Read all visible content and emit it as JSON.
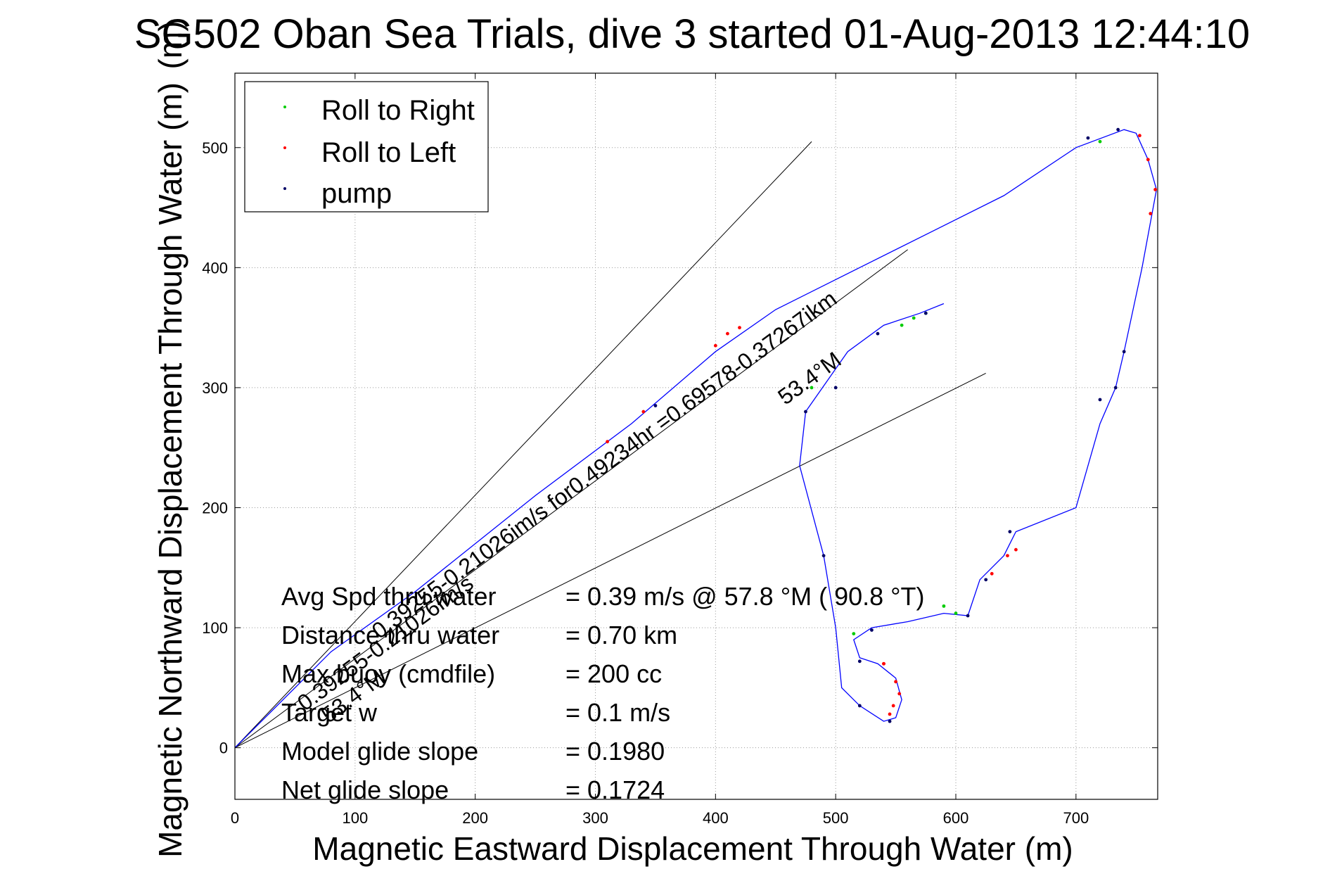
{
  "chart_data": {
    "type": "line",
    "title": "SG502 Oban Sea Trials, dive 3 started 01-Aug-2013 12:44:10",
    "title_overlap_glyph": "(m)",
    "xlabel": "Magnetic Eastward Displacement Through Water (m)",
    "ylabel": "Magnetic Northward Displacement Through Water (m)",
    "xlim": [
      0,
      768
    ],
    "ylim": [
      -43,
      562
    ],
    "xticks": [
      0,
      100,
      200,
      300,
      400,
      500,
      600,
      700
    ],
    "yticks": [
      0,
      100,
      200,
      300,
      400,
      500
    ],
    "grid": true,
    "legend": {
      "placement": "top-left",
      "entries": [
        {
          "label": "Roll to Right",
          "color": "#00cc00"
        },
        {
          "label": "Roll to Left",
          "color": "#ff0000"
        },
        {
          "label": "pump",
          "color": "#000066"
        }
      ]
    },
    "track": {
      "color": "#0000ff",
      "points": [
        [
          0,
          0
        ],
        [
          30,
          30
        ],
        [
          80,
          80
        ],
        [
          150,
          130
        ],
        [
          250,
          210
        ],
        [
          330,
          270
        ],
        [
          400,
          330
        ],
        [
          450,
          365
        ],
        [
          520,
          400
        ],
        [
          580,
          430
        ],
        [
          640,
          460
        ],
        [
          700,
          500
        ],
        [
          740,
          515
        ],
        [
          750,
          512
        ],
        [
          760,
          490
        ],
        [
          767,
          465
        ],
        [
          755,
          400
        ],
        [
          740,
          330
        ],
        [
          733,
          300
        ],
        [
          720,
          270
        ],
        [
          700,
          200
        ],
        [
          650,
          180
        ],
        [
          640,
          160
        ],
        [
          620,
          140
        ],
        [
          610,
          110
        ],
        [
          590,
          112
        ],
        [
          560,
          105
        ],
        [
          530,
          100
        ],
        [
          515,
          90
        ],
        [
          520,
          75
        ],
        [
          535,
          70
        ],
        [
          550,
          58
        ],
        [
          555,
          40
        ],
        [
          550,
          25
        ],
        [
          540,
          22
        ],
        [
          520,
          35
        ],
        [
          505,
          50
        ],
        [
          500,
          100
        ],
        [
          490,
          160
        ],
        [
          470,
          235
        ],
        [
          475,
          280
        ],
        [
          510,
          330
        ],
        [
          540,
          352
        ],
        [
          570,
          362
        ],
        [
          590,
          370
        ]
      ]
    },
    "right_roll_points": [
      [
        720,
        505
      ],
      [
        590,
        118
      ],
      [
        600,
        112
      ],
      [
        515,
        95
      ],
      [
        555,
        352
      ],
      [
        565,
        358
      ],
      [
        575,
        362
      ],
      [
        480,
        300
      ]
    ],
    "left_roll_points": [
      [
        753,
        510
      ],
      [
        760,
        490
      ],
      [
        766,
        465
      ],
      [
        762,
        445
      ],
      [
        650,
        165
      ],
      [
        643,
        160
      ],
      [
        630,
        145
      ],
      [
        550,
        55
      ],
      [
        553,
        45
      ],
      [
        548,
        35
      ],
      [
        545,
        28
      ],
      [
        540,
        70
      ],
      [
        420,
        350
      ],
      [
        410,
        345
      ],
      [
        400,
        335
      ],
      [
        340,
        280
      ],
      [
        310,
        255
      ],
      [
        540,
        70
      ]
    ],
    "pump_points": [
      [
        710,
        508
      ],
      [
        735,
        515
      ],
      [
        740,
        330
      ],
      [
        733,
        300
      ],
      [
        720,
        290
      ],
      [
        645,
        180
      ],
      [
        625,
        140
      ],
      [
        610,
        110
      ],
      [
        530,
        98
      ],
      [
        520,
        72
      ],
      [
        545,
        22
      ],
      [
        520,
        35
      ],
      [
        490,
        160
      ],
      [
        475,
        280
      ],
      [
        500,
        300
      ],
      [
        535,
        345
      ],
      [
        575,
        362
      ],
      [
        350,
        285
      ]
    ],
    "reference_lines": [
      {
        "from": [
          0,
          0
        ],
        "to": [
          480,
          505
        ]
      },
      {
        "from": [
          0,
          0
        ],
        "to": [
          625,
          312
        ]
      },
      {
        "from": [
          0,
          0
        ],
        "to": [
          560,
          415
        ]
      }
    ],
    "annotations": [
      {
        "text": "0.39255-0.21026im/s for0.49234hr =0.69578-0.37267ikm",
        "data": [
          120,
          90
        ],
        "angle": 36.3
      },
      {
        "text": "53.4°M",
        "data": [
          458,
          285
        ],
        "angle": 36.3
      },
      {
        "text": "0.39255-0.21026im/s",
        "data": [
          58,
          30
        ],
        "angle": 36.3
      },
      {
        "text": "53.4°M",
        "data": [
          78,
          20
        ],
        "angle": 36.3
      }
    ],
    "stats": [
      {
        "label": "Avg Spd thru water",
        "value": "=  0.39 m/s @  57.8 °M ( 90.8 °T)"
      },
      {
        "label": "Distance thru water",
        "value": "=  0.70 km"
      },
      {
        "label": "Max buoy (cmdfile)",
        "value": "= 200 cc"
      },
      {
        "label": "Target w",
        "value": "= 0.1 m/s"
      },
      {
        "label": "Model glide slope",
        "value": "= 0.1980"
      },
      {
        "label": "Net glide slope",
        "value": "= 0.1724"
      }
    ]
  }
}
